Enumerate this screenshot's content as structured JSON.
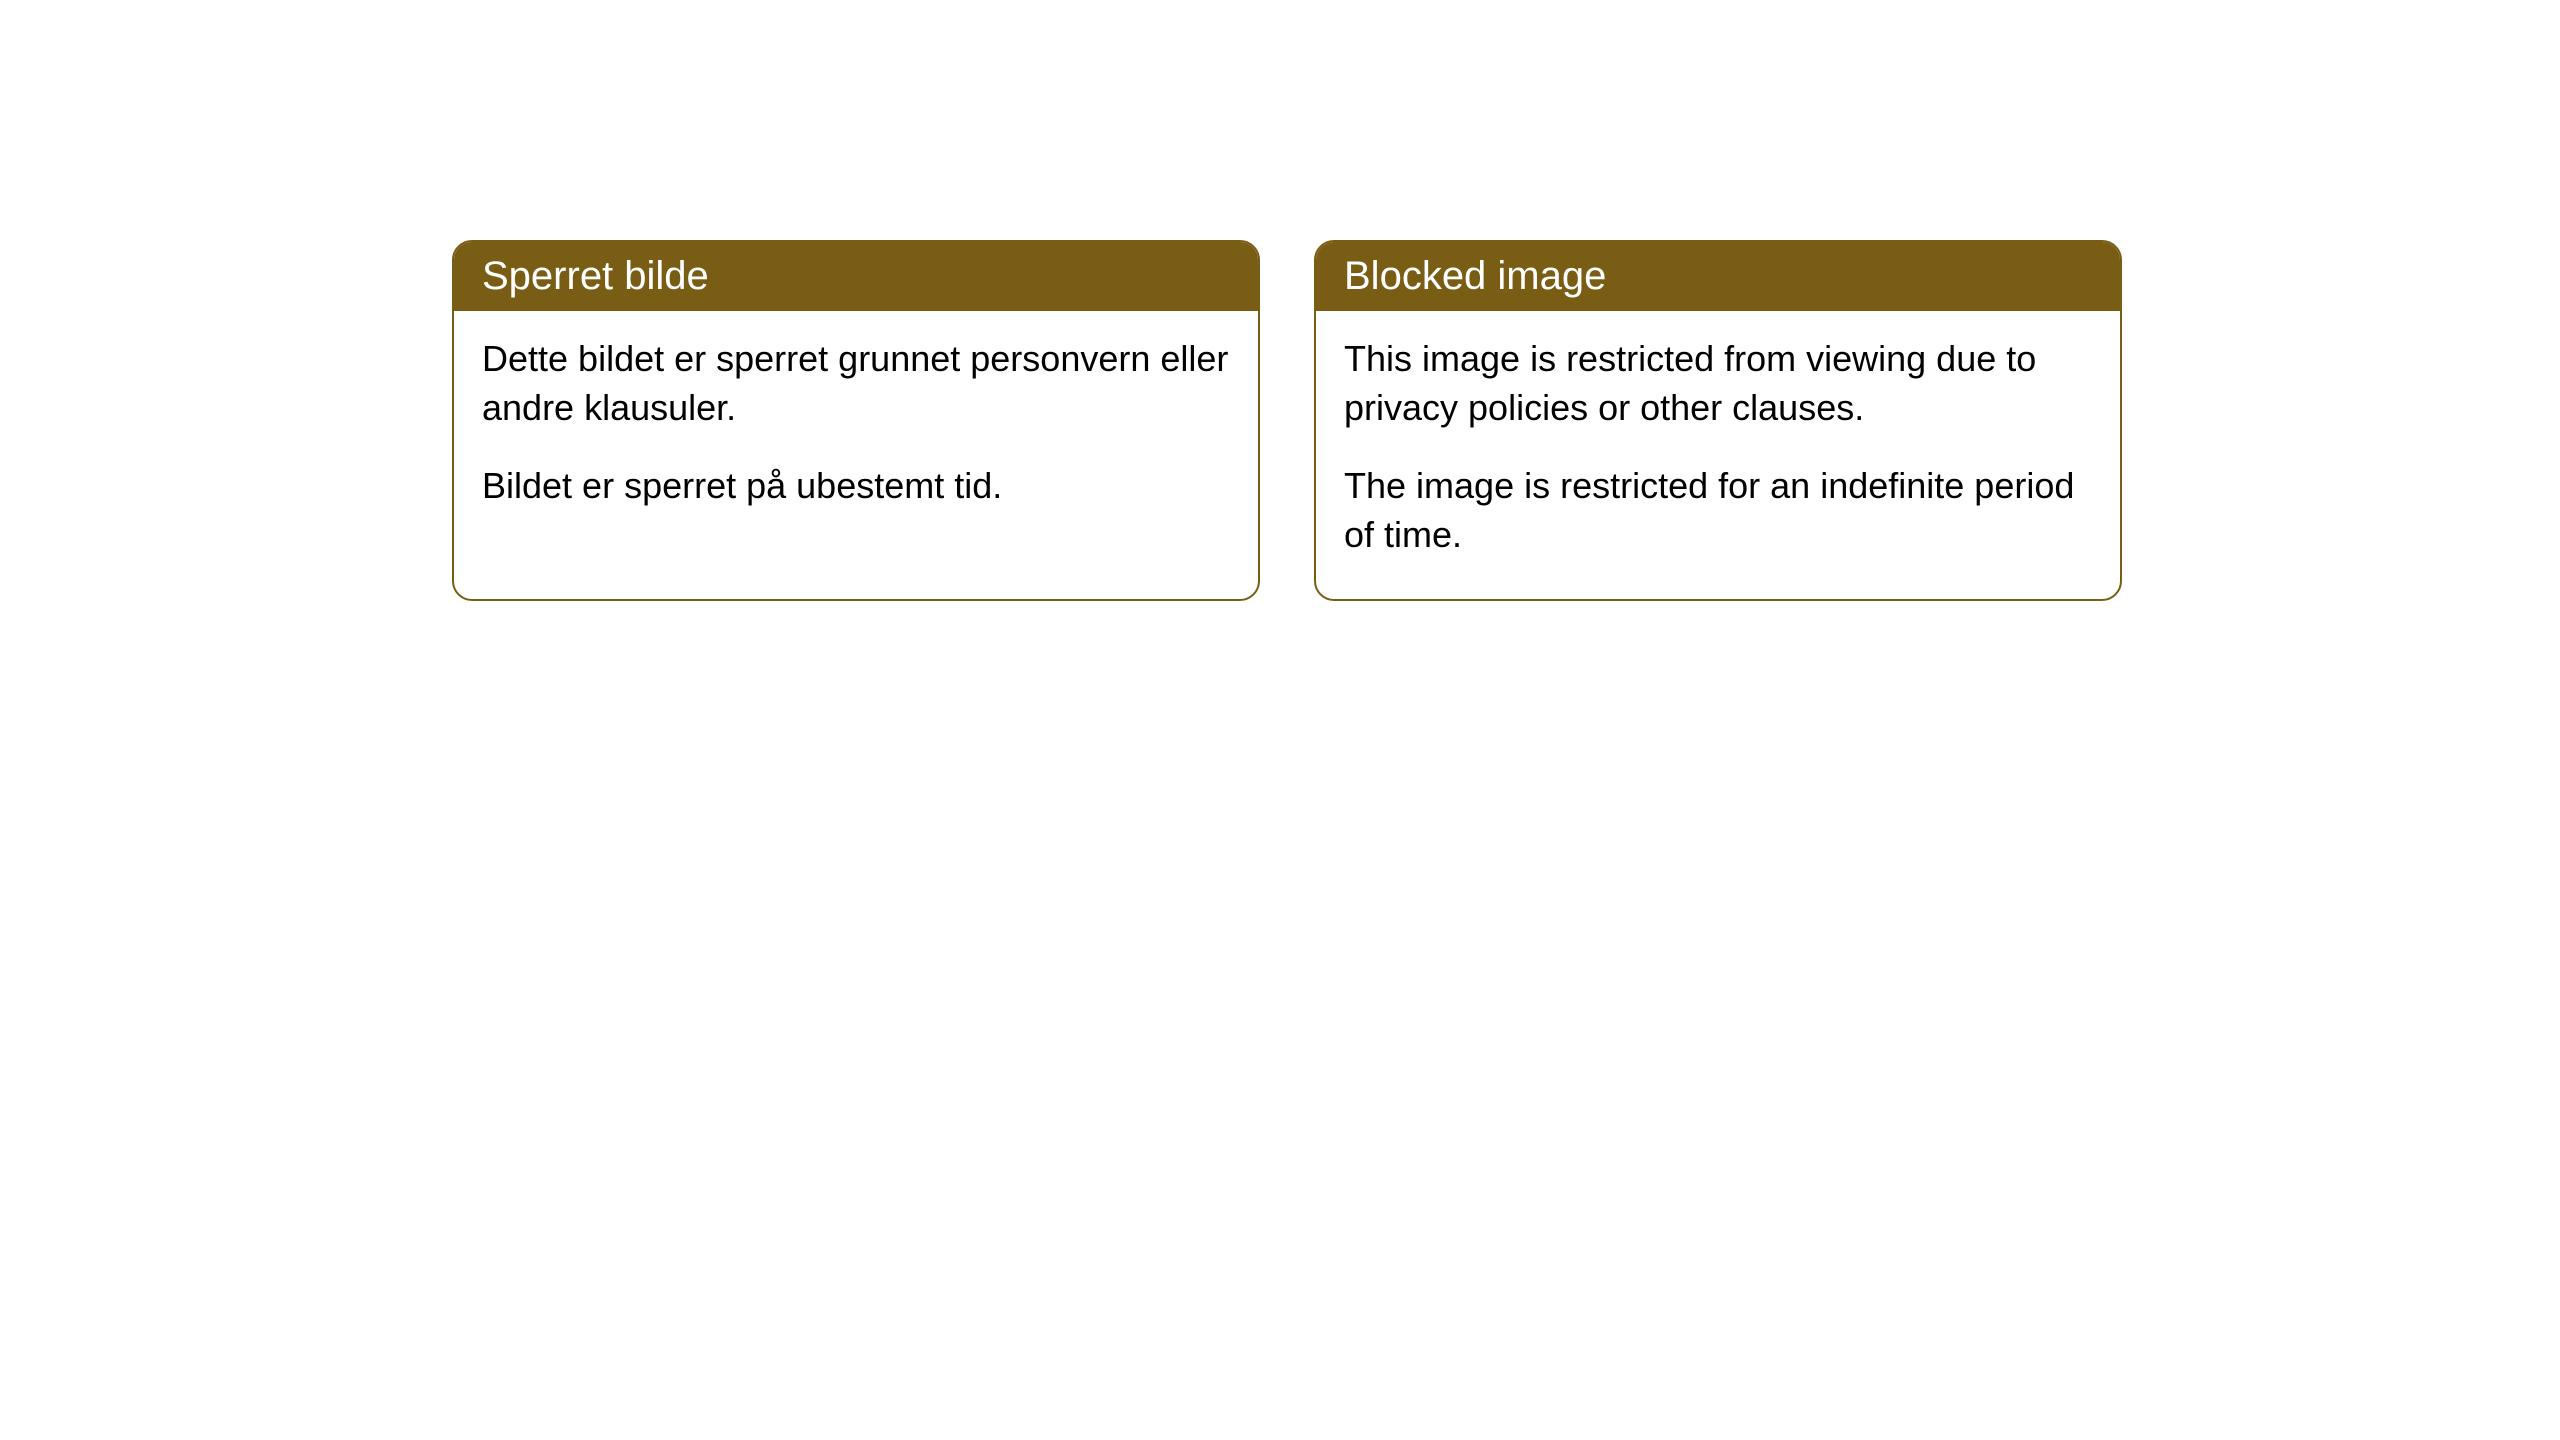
{
  "cards": [
    {
      "title": "Sperret bilde",
      "paragraph1": "Dette bildet er sperret grunnet personvern eller andre klausuler.",
      "paragraph2": "Bildet er sperret på ubestemt tid."
    },
    {
      "title": "Blocked image",
      "paragraph1": "This image is restricted from viewing due to privacy policies or other clauses.",
      "paragraph2": "The image is restricted for an indefinite period of time."
    }
  ],
  "style": {
    "header_background": "#7a5d14",
    "header_text_color": "#ffffff",
    "border_color": "#7a5d14",
    "body_background": "#ffffff",
    "body_text_color": "#000000",
    "border_radius": 20,
    "header_fontsize": 40,
    "body_fontsize": 36
  }
}
